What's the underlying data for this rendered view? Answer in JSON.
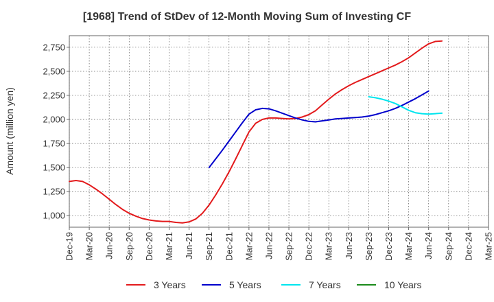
{
  "chart_data": {
    "type": "line",
    "title": "[1968]  Trend of StDev of 12-Month Moving Sum of Investing CF",
    "ylabel": "Amount (million yen)",
    "xlabel": "",
    "ylim": [
      880,
      2870
    ],
    "y_ticks": [
      1000,
      1250,
      1500,
      1750,
      2000,
      2250,
      2500,
      2750
    ],
    "y_tick_labels": [
      "1,000",
      "1,250",
      "1,500",
      "1,750",
      "2,000",
      "2,250",
      "2,500",
      "2,750"
    ],
    "x_tick_labels": [
      "Dec-19",
      "Mar-20",
      "Jun-20",
      "Sep-20",
      "Dec-20",
      "Mar-21",
      "Jun-21",
      "Sep-21",
      "Dec-21",
      "Mar-22",
      "Jun-22",
      "Sep-22",
      "Dec-22",
      "Mar-23",
      "Jun-23",
      "Sep-23",
      "Dec-23",
      "Mar-24",
      "Jun-24",
      "Sep-24",
      "Dec-24",
      "Mar-25"
    ],
    "grid": true,
    "legend_position": "bottom",
    "series": [
      {
        "name": "3 Years",
        "color": "#e31a1c",
        "start": "Dec-19",
        "values": [
          1355,
          1365,
          1355,
          1320,
          1275,
          1225,
          1170,
          1115,
          1065,
          1025,
          995,
          970,
          955,
          945,
          940,
          940,
          930,
          925,
          935,
          965,
          1025,
          1110,
          1215,
          1330,
          1455,
          1590,
          1730,
          1870,
          1960,
          2000,
          2015,
          2015,
          2010,
          2005,
          2010,
          2025,
          2050,
          2090,
          2150,
          2210,
          2265,
          2310,
          2350,
          2385,
          2415,
          2445,
          2475,
          2505,
          2535,
          2565,
          2600,
          2640,
          2690,
          2740,
          2785,
          2810,
          2815
        ]
      },
      {
        "name": "5 Years",
        "color": "#0000cc",
        "start": "Sep-21",
        "values": [
          1500,
          1590,
          1680,
          1775,
          1870,
          1965,
          2055,
          2100,
          2115,
          2110,
          2090,
          2065,
          2040,
          2015,
          1995,
          1980,
          1975,
          1985,
          1995,
          2005,
          2010,
          2015,
          2020,
          2025,
          2035,
          2050,
          2070,
          2090,
          2115,
          2145,
          2180,
          2215,
          2255,
          2295
        ]
      },
      {
        "name": "7 Years",
        "color": "#00e5ee",
        "start": "Sep-23",
        "values": [
          2235,
          2225,
          2210,
          2190,
          2165,
          2130,
          2095,
          2070,
          2060,
          2055,
          2060,
          2065
        ]
      },
      {
        "name": "10 Years",
        "color": "#1a8a1a",
        "start": "Sep-24",
        "values": []
      }
    ]
  }
}
